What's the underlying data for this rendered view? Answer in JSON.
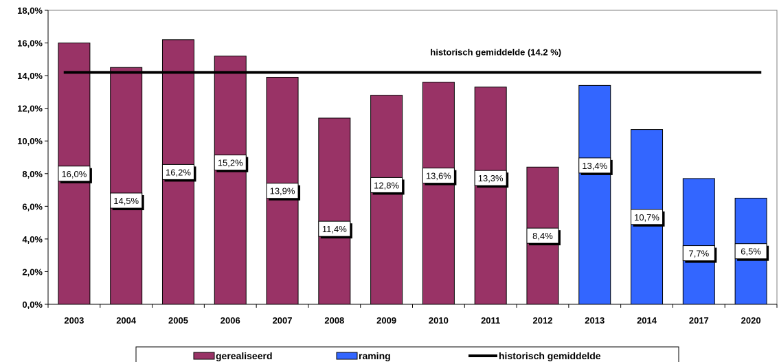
{
  "chart_data": {
    "type": "bar",
    "categories": [
      "2003",
      "2004",
      "2005",
      "2006",
      "2007",
      "2008",
      "2009",
      "2010",
      "2011",
      "2012",
      "2013",
      "2014",
      "2017",
      "2020"
    ],
    "series": [
      {
        "name": "gerealiseerd",
        "color": "#993366",
        "values": [
          16.0,
          14.5,
          16.2,
          15.2,
          13.9,
          11.4,
          12.8,
          13.6,
          13.3,
          8.4,
          null,
          null,
          null,
          null
        ],
        "labels": [
          "16,0%",
          "14,5%",
          "16,2%",
          "15,2%",
          "13,9%",
          "11,4%",
          "12,8%",
          "13,6%",
          "13,3%",
          "8,4%",
          null,
          null,
          null,
          null
        ]
      },
      {
        "name": "raming",
        "color": "#3366FF",
        "values": [
          null,
          null,
          null,
          null,
          null,
          null,
          null,
          null,
          null,
          null,
          13.4,
          10.7,
          7.7,
          6.5
        ],
        "labels": [
          null,
          null,
          null,
          null,
          null,
          null,
          null,
          null,
          null,
          null,
          "13,4%",
          "10,7%",
          "7,7%",
          "6,5%"
        ]
      }
    ],
    "reference_line": {
      "name": "historisch gemiddelde",
      "value": 14.2,
      "annotation": "historisch gemiddelde (14.2 %)",
      "color": "#000000"
    },
    "ylim": [
      0,
      18
    ],
    "yticks": [
      "0,0%",
      "2,0%",
      "4,0%",
      "6,0%",
      "8,0%",
      "10,0%",
      "12,0%",
      "14,0%",
      "16,0%",
      "18,0%"
    ],
    "ytick_values": [
      0,
      2,
      4,
      6,
      8,
      10,
      12,
      14,
      16,
      18
    ],
    "grid": false,
    "legend_placement": "bottom"
  },
  "legend": {
    "items": [
      {
        "label": "gerealiseerd",
        "kind": "box",
        "color": "#993366"
      },
      {
        "label": "raming",
        "kind": "box",
        "color": "#3366FF"
      },
      {
        "label": "historisch gemiddelde",
        "kind": "line",
        "color": "#000000"
      }
    ]
  }
}
